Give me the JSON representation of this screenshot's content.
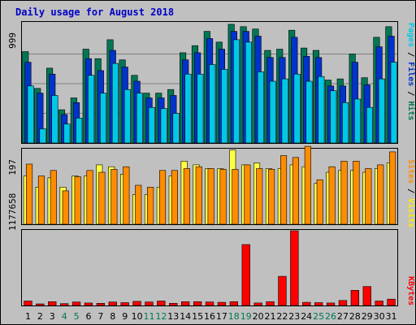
{
  "chart_data": {
    "type": "bar",
    "title": "Daily usage for August 2018",
    "days": [
      "1",
      "2",
      "3",
      "4",
      "5",
      "6",
      "7",
      "8",
      "9",
      "10",
      "11",
      "12",
      "13",
      "14",
      "15",
      "16",
      "17",
      "18",
      "19",
      "20",
      "21",
      "22",
      "23",
      "24",
      "25",
      "26",
      "27",
      "28",
      "29",
      "30",
      "31"
    ],
    "weekend_days": [
      "4",
      "5",
      "11",
      "12",
      "18",
      "19",
      "25",
      "26"
    ],
    "panels": [
      {
        "name": "top",
        "ymax_label": "999",
        "ymax": 999,
        "side_labels": [
          {
            "text": "Pages",
            "color": "#00c8e6"
          },
          {
            "text": " / ",
            "color": "#000000"
          },
          {
            "text": "Files",
            "color": "#0033cc"
          },
          {
            "text": " / ",
            "color": "#000000"
          },
          {
            "text": "Hits",
            "color": "#007755"
          }
        ],
        "series": [
          {
            "name": "Hits",
            "color": "#007755",
            "values": [
              770,
              460,
              630,
              280,
              380,
              790,
              710,
              870,
              700,
              570,
              420,
              420,
              450,
              760,
              820,
              940,
              850,
              1000,
              980,
              960,
              780,
              790,
              950,
              800,
              780,
              530,
              540,
              750,
              550,
              890,
              980
            ]
          },
          {
            "name": "Files",
            "color": "#0033cc",
            "values": [
              680,
              420,
              580,
              240,
              340,
              710,
              610,
              780,
              640,
              520,
              380,
              380,
              400,
              700,
              760,
              880,
              790,
              940,
              940,
              900,
              720,
              720,
              890,
              730,
              720,
              480,
              480,
              680,
              490,
              810,
              900
            ]
          },
          {
            "name": "Pages",
            "color": "#00c8e6",
            "values": [
              480,
              120,
              400,
              160,
              210,
              570,
              420,
              670,
              450,
              420,
              300,
              290,
              250,
              580,
              580,
              660,
              620,
              870,
              850,
              600,
              520,
              540,
              580,
              520,
              560,
              440,
              340,
              370,
              300,
              540,
              680
            ]
          }
        ]
      },
      {
        "name": "middle",
        "ymax_label": "197",
        "ymax": 197,
        "side_labels": [
          {
            "text": "Sites",
            "color": "#ff8c00"
          },
          {
            "text": " / ",
            "color": "#000000"
          },
          {
            "text": "Visits",
            "color": "#ffee00"
          }
        ],
        "series": [
          {
            "name": "Visits",
            "color": "#ffff44",
            "values": [
              130,
              100,
              125,
              100,
              130,
              130,
              160,
              155,
              135,
              80,
              80,
              100,
              130,
              170,
              160,
              150,
              150,
              200,
              160,
              165,
              150,
              150,
              160,
              155,
              110,
              140,
              145,
              145,
              140,
              150,
              165
            ]
          },
          {
            "name": "Sites",
            "color": "#ff8c00",
            "values": [
              162,
              130,
              145,
              90,
              128,
              145,
              140,
              148,
              155,
              105,
              100,
              145,
              145,
              150,
              155,
              150,
              148,
              148,
              160,
              150,
              148,
              185,
              180,
              210,
              120,
              155,
              170,
              170,
              150,
              160,
              195
            ]
          }
        ]
      },
      {
        "name": "bottom",
        "ymax_label": "1177658",
        "ymax": 1177658,
        "side_labels": [
          {
            "text": "KBytes",
            "color": "#ff0000"
          }
        ],
        "series": [
          {
            "name": "KBytes",
            "color": "#ff0000",
            "values": [
              70000,
              25000,
              60000,
              30000,
              55000,
              40000,
              35000,
              55000,
              45000,
              65000,
              55000,
              70000,
              35000,
              60000,
              60000,
              55000,
              50000,
              60000,
              960000,
              40000,
              60000,
              460000,
              1177658,
              50000,
              45000,
              40000,
              80000,
              240000,
              300000,
              70000,
              100000
            ]
          }
        ]
      }
    ]
  }
}
